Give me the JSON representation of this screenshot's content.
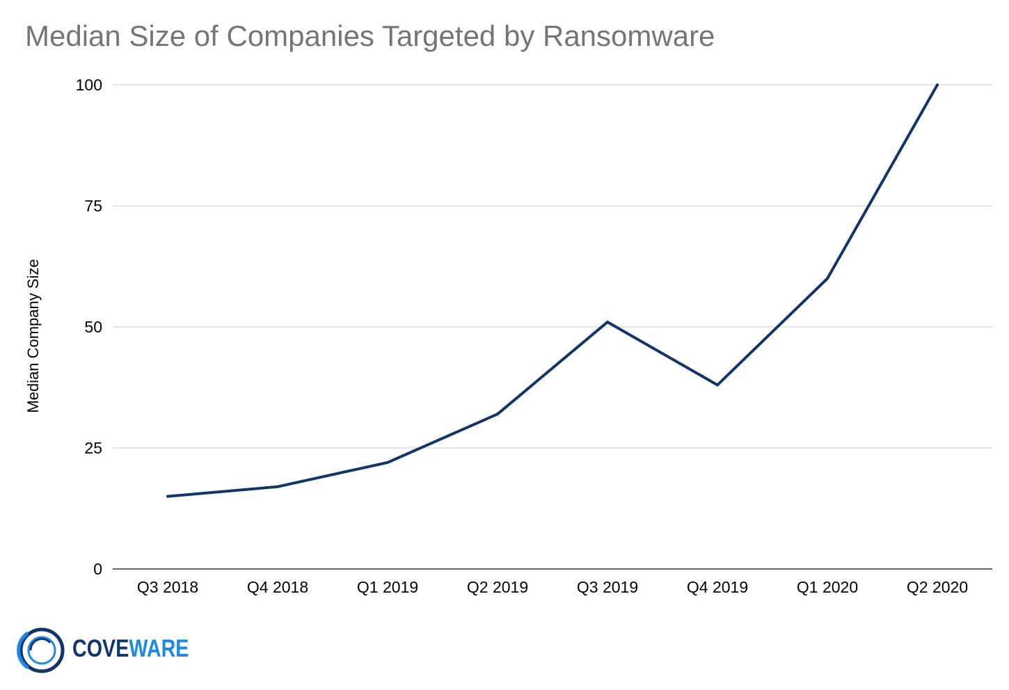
{
  "title": "Median Size of Companies Targeted by Ransomware",
  "colors": {
    "line": "#0f3470",
    "grid": "#cccccc",
    "title": "#757575",
    "logo_dark": "#0f3470",
    "logo_light": "#1e88e5"
  },
  "logo": {
    "part1": "COVE",
    "part2": "WARE"
  },
  "chart_data": {
    "type": "line",
    "title": "Median Size of Companies Targeted by Ransomware",
    "xlabel": "",
    "ylabel": "Median Company Size",
    "categories": [
      "Q3 2018",
      "Q4 2018",
      "Q1 2019",
      "Q2 2019",
      "Q3 2019",
      "Q4 2019",
      "Q1 2020",
      "Q2 2020"
    ],
    "series": [
      {
        "values": [
          15,
          17,
          22,
          32,
          51,
          38,
          60,
          100
        ]
      }
    ],
    "ylim": [
      0,
      100
    ],
    "yticks": [
      0,
      25,
      50,
      75,
      100
    ],
    "grid": true,
    "legend": "none"
  }
}
